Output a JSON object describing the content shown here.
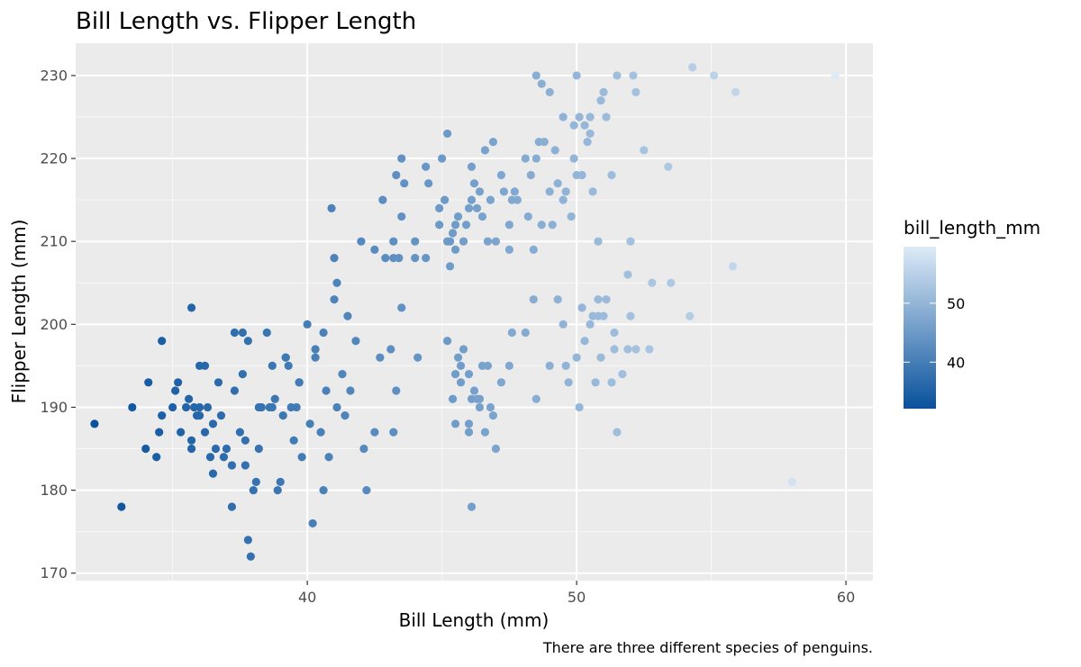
{
  "chart_data": {
    "type": "scatter",
    "title": "Bill Length vs. Flipper Length",
    "xlabel": "Bill Length (mm)",
    "ylabel": "Flipper Length (mm)",
    "caption": "There are three different species of penguins.",
    "xlim": [
      31.4,
      61.0
    ],
    "ylim": [
      169.1,
      233.9
    ],
    "x_ticks": [
      40,
      50,
      60
    ],
    "y_ticks": [
      170,
      180,
      190,
      200,
      210,
      220,
      230
    ],
    "grid": true,
    "legend_position": "right",
    "color_scale": {
      "variable": "bill_length_mm",
      "title": "bill_length_mm",
      "min": 32.1,
      "max": 59.6,
      "low_color": "#08519c",
      "high_color": "#deebf7",
      "ticks": [
        40,
        50
      ]
    },
    "points": [
      [
        32.1,
        188
      ],
      [
        33.1,
        178
      ],
      [
        33.5,
        190
      ],
      [
        34.0,
        185
      ],
      [
        34.1,
        193
      ],
      [
        34.4,
        184
      ],
      [
        34.5,
        187
      ],
      [
        34.6,
        189
      ],
      [
        34.6,
        198
      ],
      [
        35.0,
        190
      ],
      [
        35.1,
        192
      ],
      [
        35.2,
        193
      ],
      [
        35.3,
        187
      ],
      [
        35.7,
        186
      ],
      [
        35.9,
        189
      ],
      [
        35.5,
        190
      ],
      [
        35.6,
        191
      ],
      [
        35.7,
        202
      ],
      [
        35.7,
        185
      ],
      [
        35.8,
        190
      ],
      [
        36.0,
        189
      ],
      [
        36.2,
        187
      ],
      [
        36.3,
        190
      ],
      [
        36.4,
        184
      ],
      [
        36.5,
        182
      ],
      [
        36.6,
        185
      ],
      [
        36.7,
        193
      ],
      [
        36.8,
        189
      ],
      [
        36.2,
        195
      ],
      [
        36.0,
        195
      ],
      [
        36.9,
        184
      ],
      [
        37.0,
        185
      ],
      [
        37.2,
        178
      ],
      [
        37.3,
        192
      ],
      [
        37.5,
        187
      ],
      [
        37.6,
        194
      ],
      [
        37.7,
        183
      ],
      [
        37.8,
        174
      ],
      [
        37.9,
        172
      ],
      [
        38.0,
        180
      ],
      [
        38.1,
        181
      ],
      [
        38.2,
        185
      ],
      [
        38.3,
        190
      ],
      [
        38.5,
        199
      ],
      [
        38.6,
        190
      ],
      [
        38.7,
        195
      ],
      [
        38.8,
        191
      ],
      [
        38.9,
        180
      ],
      [
        39.0,
        181
      ],
      [
        39.1,
        189
      ],
      [
        39.2,
        196
      ],
      [
        39.3,
        195
      ],
      [
        39.5,
        186
      ],
      [
        39.6,
        190
      ],
      [
        39.7,
        193
      ],
      [
        39.8,
        184
      ],
      [
        40.1,
        188
      ],
      [
        40.2,
        176
      ],
      [
        40.3,
        196
      ],
      [
        40.5,
        187
      ],
      [
        40.6,
        180
      ],
      [
        40.7,
        192
      ],
      [
        40.8,
        184
      ],
      [
        40.9,
        214
      ],
      [
        41.1,
        190
      ],
      [
        41.3,
        194
      ],
      [
        41.4,
        189
      ],
      [
        41.5,
        201
      ],
      [
        41.6,
        192
      ],
      [
        41.8,
        198
      ],
      [
        42.0,
        210
      ],
      [
        42.1,
        185
      ],
      [
        42.2,
        180
      ],
      [
        42.5,
        187
      ],
      [
        42.7,
        196
      ],
      [
        43.1,
        197
      ],
      [
        43.2,
        187
      ],
      [
        43.5,
        202
      ],
      [
        43.3,
        192
      ],
      [
        44.1,
        196
      ],
      [
        37.6,
        199
      ],
      [
        36.0,
        190
      ],
      [
        37.8,
        198
      ],
      [
        39.2,
        196
      ],
      [
        40.6,
        199
      ],
      [
        40.3,
        197
      ],
      [
        38.2,
        190
      ],
      [
        37.2,
        183
      ],
      [
        36.5,
        188
      ],
      [
        38.7,
        190
      ],
      [
        39.4,
        190
      ],
      [
        40.0,
        200
      ],
      [
        41.0,
        208
      ],
      [
        41.1,
        205
      ],
      [
        41.0,
        203
      ],
      [
        37.3,
        199
      ],
      [
        37.7,
        186
      ],
      [
        39.7,
        193
      ],
      [
        42.5,
        209
      ],
      [
        42.8,
        215
      ],
      [
        43.2,
        210
      ],
      [
        43.5,
        213
      ],
      [
        43.3,
        218
      ],
      [
        43.5,
        220
      ],
      [
        43.6,
        217
      ],
      [
        44.0,
        210
      ],
      [
        44.4,
        219
      ],
      [
        44.5,
        217
      ],
      [
        44.9,
        212
      ],
      [
        45.1,
        215
      ],
      [
        45.2,
        223
      ],
      [
        45.3,
        210
      ],
      [
        45.4,
        211
      ],
      [
        45.5,
        212
      ],
      [
        45.6,
        213
      ],
      [
        45.8,
        210
      ],
      [
        46.0,
        214
      ],
      [
        46.1,
        215
      ],
      [
        46.2,
        217
      ],
      [
        46.4,
        216
      ],
      [
        46.5,
        213
      ],
      [
        46.8,
        215
      ],
      [
        46.9,
        222
      ],
      [
        47.0,
        210
      ],
      [
        47.3,
        216
      ],
      [
        47.5,
        212
      ],
      [
        47.6,
        215
      ],
      [
        47.7,
        216
      ],
      [
        47.8,
        215
      ],
      [
        48.1,
        220
      ],
      [
        48.2,
        213
      ],
      [
        48.4,
        209
      ],
      [
        48.5,
        220
      ],
      [
        48.6,
        222
      ],
      [
        48.7,
        212
      ],
      [
        48.8,
        222
      ],
      [
        49.0,
        216
      ],
      [
        49.1,
        212
      ],
      [
        49.2,
        221
      ],
      [
        49.3,
        217
      ],
      [
        49.5,
        215
      ],
      [
        49.6,
        216
      ],
      [
        49.8,
        213
      ],
      [
        49.9,
        220
      ],
      [
        50.0,
        218
      ],
      [
        50.1,
        225
      ],
      [
        50.2,
        218
      ],
      [
        50.3,
        224
      ],
      [
        50.4,
        222
      ],
      [
        50.5,
        223
      ],
      [
        50.6,
        216
      ],
      [
        50.8,
        210
      ],
      [
        50.9,
        227
      ],
      [
        51.1,
        225
      ],
      [
        51.3,
        218
      ],
      [
        51.5,
        230
      ],
      [
        52.1,
        230
      ],
      [
        52.2,
        228
      ],
      [
        52.5,
        221
      ],
      [
        53.4,
        219
      ],
      [
        54.3,
        231
      ],
      [
        55.1,
        230
      ],
      [
        55.9,
        228
      ],
      [
        59.6,
        230
      ],
      [
        48.5,
        230
      ],
      [
        48.7,
        229
      ],
      [
        49.0,
        228
      ],
      [
        49.5,
        225
      ],
      [
        49.9,
        224
      ],
      [
        50.0,
        230
      ],
      [
        50.5,
        225
      ],
      [
        51.0,
        228
      ],
      [
        45.2,
        210
      ],
      [
        45.9,
        212
      ],
      [
        46.6,
        221
      ],
      [
        47.2,
        218
      ],
      [
        46.3,
        214
      ],
      [
        45.0,
        220
      ],
      [
        44.4,
        208
      ],
      [
        44.0,
        208
      ],
      [
        43.2,
        208
      ],
      [
        44.9,
        214
      ],
      [
        45.3,
        207
      ],
      [
        45.5,
        209
      ],
      [
        46.1,
        219
      ],
      [
        46.7,
        210
      ],
      [
        47.5,
        209
      ],
      [
        48.3,
        218
      ],
      [
        42.9,
        208
      ],
      [
        43.4,
        208
      ],
      [
        45.2,
        198
      ],
      [
        45.4,
        191
      ],
      [
        45.7,
        195
      ],
      [
        46.0,
        194
      ],
      [
        46.1,
        191
      ],
      [
        46.4,
        191
      ],
      [
        46.5,
        195
      ],
      [
        46.6,
        187
      ],
      [
        46.7,
        195
      ],
      [
        46.9,
        189
      ],
      [
        47.0,
        185
      ],
      [
        47.5,
        195
      ],
      [
        45.5,
        188
      ],
      [
        45.6,
        196
      ],
      [
        46.2,
        192
      ],
      [
        46.3,
        191
      ],
      [
        46.8,
        190
      ],
      [
        47.6,
        199
      ],
      [
        48.1,
        199
      ],
      [
        48.4,
        203
      ],
      [
        48.5,
        191
      ],
      [
        49.0,
        195
      ],
      [
        49.3,
        203
      ],
      [
        49.5,
        200
      ],
      [
        49.6,
        195
      ],
      [
        49.7,
        193
      ],
      [
        50.0,
        196
      ],
      [
        50.1,
        190
      ],
      [
        50.2,
        202
      ],
      [
        50.3,
        198
      ],
      [
        50.5,
        200
      ],
      [
        50.6,
        201
      ],
      [
        50.7,
        193
      ],
      [
        50.8,
        203
      ],
      [
        50.9,
        196
      ],
      [
        51.0,
        201
      ],
      [
        51.3,
        193
      ],
      [
        51.4,
        197
      ],
      [
        51.5,
        187
      ],
      [
        51.7,
        194
      ],
      [
        51.9,
        197
      ],
      [
        52.0,
        201
      ],
      [
        52.2,
        197
      ],
      [
        52.7,
        197
      ],
      [
        53.5,
        205
      ],
      [
        54.2,
        201
      ],
      [
        55.8,
        207
      ],
      [
        58.0,
        181
      ],
      [
        52.8,
        205
      ],
      [
        51.9,
        206
      ],
      [
        52.0,
        210
      ],
      [
        51.1,
        203
      ],
      [
        51.4,
        199
      ],
      [
        50.8,
        201
      ],
      [
        45.8,
        197
      ],
      [
        45.5,
        194
      ],
      [
        46.0,
        187
      ],
      [
        46.1,
        178
      ],
      [
        46.4,
        190
      ],
      [
        46.0,
        188
      ],
      [
        45.7,
        193
      ],
      [
        47.2,
        193
      ]
    ]
  }
}
